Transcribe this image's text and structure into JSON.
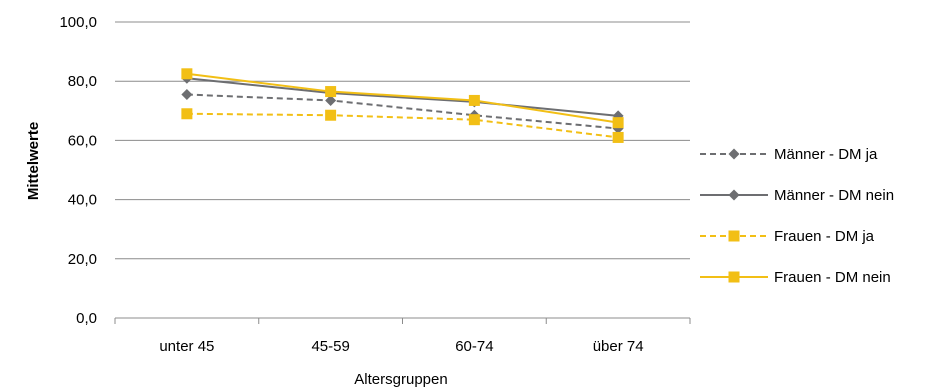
{
  "chart_data": {
    "type": "line",
    "categories": [
      "unter 45",
      "45-59",
      "60-74",
      "über 74"
    ],
    "xlabel": "Altersgruppen",
    "ylabel": "Mittelwerte",
    "ylim": [
      0,
      100
    ],
    "yticks": [
      0,
      20,
      40,
      60,
      80,
      100
    ],
    "ytick_labels": [
      "0,0",
      "20,0",
      "40,0",
      "60,0",
      "80,0",
      "100,0"
    ],
    "grid": true,
    "legend_position": "right",
    "series": [
      {
        "name": "Männer - DM ja",
        "values": [
          75.5,
          73.5,
          68.5,
          64.0
        ],
        "color": "#6d6e71",
        "dash": true,
        "marker": "diamond"
      },
      {
        "name": "Männer - DM nein",
        "values": [
          81.0,
          76.0,
          73.0,
          68.3
        ],
        "color": "#6d6e71",
        "dash": false,
        "marker": "diamond"
      },
      {
        "name": "Frauen  - DM ja",
        "values": [
          69.0,
          68.5,
          67.0,
          61.0
        ],
        "color": "#f2bf15",
        "dash": true,
        "marker": "square"
      },
      {
        "name": "Frauen  - DM nein",
        "values": [
          82.5,
          76.5,
          73.5,
          66.0
        ],
        "color": "#f2bf15",
        "dash": false,
        "marker": "square"
      }
    ]
  }
}
